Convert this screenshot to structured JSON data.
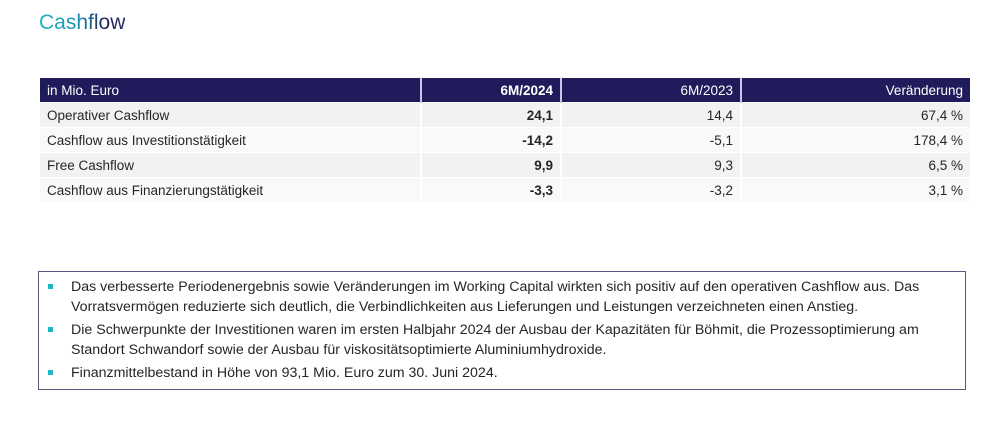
{
  "page": {
    "title": "Cashflow"
  },
  "table": {
    "headers": [
      "in Mio. Euro",
      "6M/2024",
      "6M/2023",
      "Veränderung"
    ],
    "rows": [
      {
        "label": "Operativer Cashflow",
        "current": "24,1",
        "previous": "14,4",
        "change": "67,4 %"
      },
      {
        "label": "Cashflow aus Investitionstätigkeit",
        "current": "-14,2",
        "previous": "-5,1",
        "change": "178,4 %"
      },
      {
        "label": "Free Cashflow",
        "current": "9,9",
        "previous": "9,3",
        "change": "6,5 %"
      },
      {
        "label": "Cashflow aus Finanzierungstätigkeit",
        "current": "-3,3",
        "previous": "-3,2",
        "change": "3,1 %"
      }
    ]
  },
  "notes": {
    "items": [
      "Das verbesserte Periodenergebnis sowie Veränderungen im Working Capital wirkten sich positiv auf den operativen Cashflow aus. Das Vorratsvermögen reduzierte sich deutlich, die Verbindlichkeiten aus Lieferungen und Leistungen verzeichneten einen Anstieg.",
      "Die Schwerpunkte der Investitionen waren im ersten Halbjahr 2024 der Ausbau der Kapazitäten für Böhmit, die Prozessoptimierung am Standort Schwandorf sowie der Ausbau für viskositätsoptimierte Aluminiumhydroxide.",
      "Finanzmittelbestand in Höhe von 93,1 Mio. Euro zum 30. Juni 2024."
    ]
  },
  "colors": {
    "header_bg": "#201c5c",
    "accent_teal": "#22b5c4",
    "title_gradient_start": "#1fb5bd",
    "title_gradient_end": "#24285c"
  }
}
